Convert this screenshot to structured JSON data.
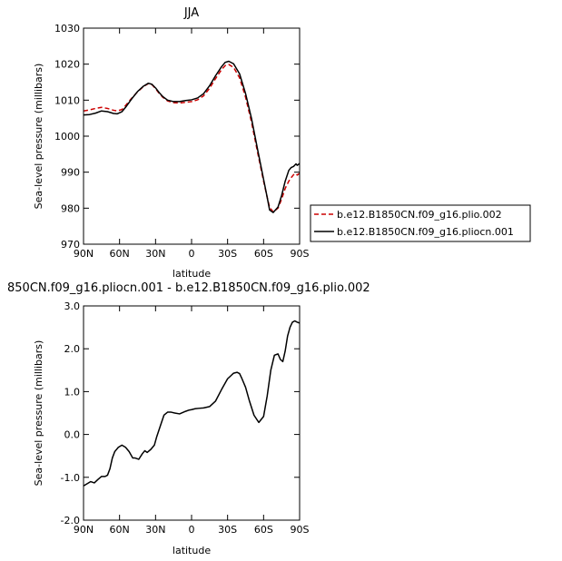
{
  "chart_data": [
    {
      "type": "line",
      "title": "JJA",
      "xlabel": "latitude",
      "ylabel": "Sea-level pressure (millibars)",
      "xlim": [
        90,
        -90
      ],
      "ylim": [
        970,
        1030
      ],
      "x_ticks": [
        90,
        60,
        30,
        0,
        -30,
        -60,
        -90
      ],
      "x_tick_labels": [
        "90N",
        "60N",
        "30N",
        "0",
        "30S",
        "60S",
        "90S"
      ],
      "y_ticks": [
        970,
        980,
        990,
        1000,
        1010,
        1020,
        1030
      ],
      "y_tick_labels": [
        "970",
        "980",
        "990",
        "1000",
        "1010",
        "1020",
        "1030"
      ],
      "legend_placement": "outside-right",
      "series": [
        {
          "name": "b.e12.B1850CN.f09_g16.plio.002",
          "color": "#cc0000",
          "style": "dashed",
          "x": [
            90,
            85,
            80,
            75,
            70,
            65,
            62,
            58,
            55,
            50,
            45,
            40,
            36,
            33,
            30,
            27,
            24,
            20,
            15,
            10,
            5,
            0,
            -5,
            -10,
            -15,
            -20,
            -25,
            -28,
            -31,
            -35,
            -40,
            -45,
            -50,
            -55,
            -60,
            -63,
            -65,
            -68,
            -72,
            -75,
            -78,
            -81,
            -83,
            -85,
            -87,
            -88,
            -90
          ],
          "y": [
            1007,
            1007.3,
            1007.7,
            1008,
            1007.7,
            1007.2,
            1007,
            1007.4,
            1008.5,
            1010.5,
            1012.3,
            1013.8,
            1014.6,
            1014.3,
            1013.2,
            1011.9,
            1010.8,
            1009.8,
            1009.3,
            1009.2,
            1009.4,
            1009.6,
            1010.1,
            1011.2,
            1013.3,
            1016,
            1018.5,
            1019.6,
            1019.9,
            1019.1,
            1016.2,
            1010.8,
            1003.8,
            995.5,
            987.5,
            983,
            980.2,
            979,
            980,
            982.5,
            985.5,
            987.5,
            988.5,
            989.3,
            989.6,
            989.2,
            989.7
          ]
        },
        {
          "name": "b.e12.B1850CN.f09_g16.pliocn.001",
          "color": "#000000",
          "style": "solid",
          "x": [
            90,
            85,
            80,
            75,
            70,
            65,
            62,
            58,
            55,
            50,
            45,
            40,
            36,
            33,
            30,
            27,
            24,
            20,
            15,
            10,
            5,
            0,
            -5,
            -10,
            -15,
            -20,
            -25,
            -28,
            -31,
            -35,
            -40,
            -45,
            -50,
            -55,
            -60,
            -63,
            -65,
            -68,
            -72,
            -75,
            -78,
            -81,
            -83,
            -85,
            -87,
            -88,
            -90
          ],
          "y": [
            1005.9,
            1006,
            1006.4,
            1007,
            1006.8,
            1006.3,
            1006.2,
            1006.8,
            1008,
            1010.3,
            1012.4,
            1013.9,
            1014.7,
            1014.4,
            1013.4,
            1012.1,
            1011,
            1010,
            1009.6,
            1009.6,
            1009.9,
            1010.1,
            1010.6,
            1011.8,
            1014,
            1016.8,
            1019.3,
            1020.5,
            1020.8,
            1020.1,
            1017.3,
            1011.8,
            1004.8,
            996.3,
            988,
            983,
            979.5,
            978.8,
            980.3,
            983.5,
            987.5,
            990.5,
            991.3,
            991.6,
            992.3,
            991.9,
            992.4
          ]
        }
      ]
    },
    {
      "type": "line",
      "title": "850CN.f09_g16.pliocn.001 - b.e12.B1850CN.f09_g16.plio.002",
      "xlabel": "latitude",
      "ylabel": "Sea-level pressure (millibars)",
      "xlim": [
        90,
        -90
      ],
      "ylim": [
        -2,
        3
      ],
      "x_ticks": [
        90,
        60,
        30,
        0,
        -30,
        -60,
        -90
      ],
      "x_tick_labels": [
        "90N",
        "60N",
        "30N",
        "0",
        "30S",
        "60S",
        "90S"
      ],
      "y_ticks": [
        -2,
        -1,
        0,
        1,
        2,
        3
      ],
      "y_tick_labels": [
        "-2.0",
        "-1.0",
        "0.0",
        "1.0",
        "2.0",
        "3.0"
      ],
      "series": [
        {
          "color": "#000000",
          "style": "solid",
          "x": [
            90,
            87,
            84,
            81,
            78,
            75,
            72,
            70,
            68,
            66,
            64,
            61,
            58,
            55,
            52,
            49,
            47,
            44,
            41,
            39,
            37,
            34,
            31,
            29,
            26,
            23,
            20,
            17,
            14,
            10,
            5,
            2,
            0,
            -3,
            -6,
            -10,
            -15,
            -20,
            -25,
            -30,
            -35,
            -38,
            -40,
            -42,
            -45,
            -48,
            -52,
            -56,
            -60,
            -63,
            -66,
            -69,
            -72,
            -74,
            -76,
            -78,
            -80,
            -82,
            -84,
            -86,
            -88,
            -90
          ],
          "y": [
            -1.2,
            -1.15,
            -1.1,
            -1.13,
            -1.05,
            -0.98,
            -0.98,
            -0.95,
            -0.8,
            -0.55,
            -0.4,
            -0.3,
            -0.25,
            -0.3,
            -0.4,
            -0.55,
            -0.55,
            -0.58,
            -0.45,
            -0.38,
            -0.42,
            -0.35,
            -0.25,
            -0.05,
            0.2,
            0.45,
            0.52,
            0.52,
            0.5,
            0.48,
            0.54,
            0.57,
            0.58,
            0.6,
            0.61,
            0.62,
            0.65,
            0.78,
            1.05,
            1.3,
            1.43,
            1.45,
            1.42,
            1.3,
            1.1,
            0.8,
            0.45,
            0.28,
            0.42,
            0.9,
            1.5,
            1.85,
            1.88,
            1.75,
            1.7,
            1.95,
            2.3,
            2.5,
            2.62,
            2.65,
            2.62,
            2.6
          ]
        }
      ]
    }
  ]
}
